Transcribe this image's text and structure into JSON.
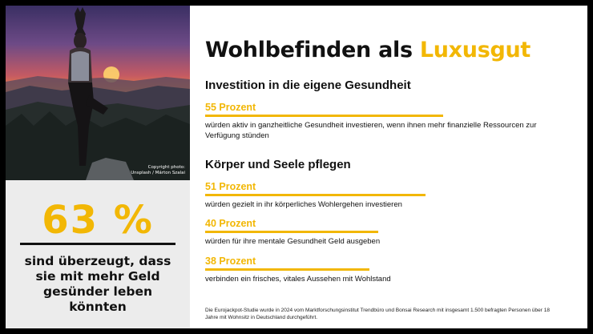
{
  "photo": {
    "credit_line1": "Copyright photo:",
    "credit_line2": "Unsplash / Márton Szalai"
  },
  "highlight": {
    "value": "63 %",
    "text": "sind überzeugt, dass sie mit mehr Geld gesünder leben könnten"
  },
  "title": {
    "main": "Wohlbefinden als ",
    "accent": "Luxusgut"
  },
  "sections": [
    {
      "heading": "Investition in die eigene Gesundheit"
    },
    {
      "heading": "Körper und Seele pflegen"
    }
  ],
  "chart_data": {
    "type": "bar",
    "categories": [
      "würden aktiv in ganzheitliche Gesundheit investieren, wenn ihnen mehr finanzielle Ressourcen zur Verfügung stünden",
      "würden gezielt in ihr körperliches Wohlergehen investieren",
      "würden für ihre mentale Gesundheit Geld ausgeben",
      "verbinden ein frisches, vitales Aussehen mit Wohlstand"
    ],
    "labels": [
      "55 Prozent",
      "51 Prozent",
      "40 Prozent",
      "38 Prozent"
    ],
    "values": [
      55,
      51,
      40,
      38
    ],
    "unit": "Prozent",
    "ylim": [
      0,
      100
    ],
    "colors": {
      "bar": "#f2b705"
    },
    "title": "Wohlbefinden als Luxusgut"
  },
  "footnote": "Die Eurojackpot-Studie wurde in 2024 vom Marktforschungsinstitut Trendbüro und Bonsai Research mit insgesamt 1.500 befragten Personen über 18 Jahre mit Wohnsitz in Deutschland durchgeführt.",
  "colors": {
    "accent": "#f2b705",
    "text": "#111111",
    "panel": "#ececec"
  }
}
